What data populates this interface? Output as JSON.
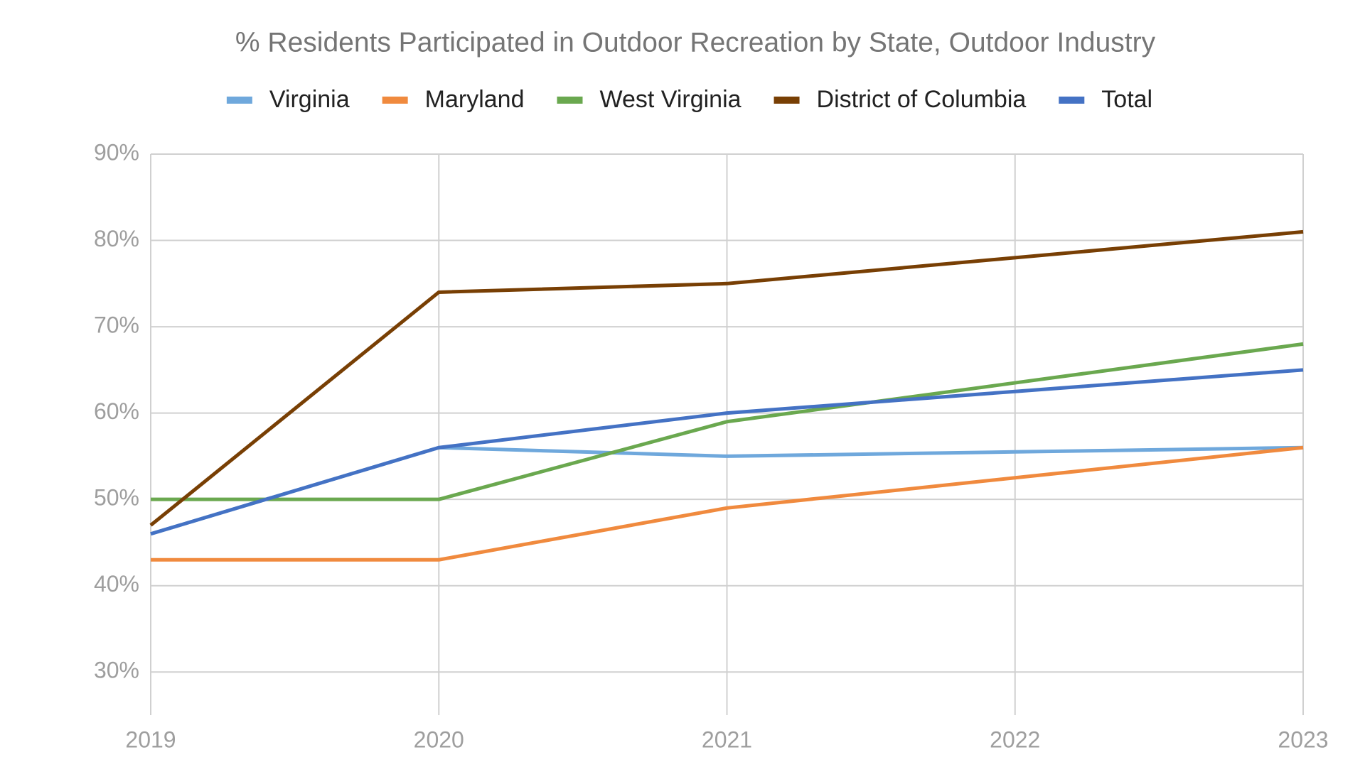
{
  "chart_data": {
    "type": "line",
    "title": "% Residents Participated in Outdoor Recreation by State, Outdoor Industry",
    "x": [
      2019,
      2020,
      2021,
      2022,
      2023
    ],
    "xlim": [
      2019,
      2023
    ],
    "xticks": [
      2019,
      2020,
      2021,
      2022,
      2023
    ],
    "ylim": [
      25,
      90
    ],
    "yticks": [
      {
        "value": 30,
        "label": "30%"
      },
      {
        "value": 40,
        "label": "40%"
      },
      {
        "value": 50,
        "label": "50%"
      },
      {
        "value": 60,
        "label": "60%"
      },
      {
        "value": 70,
        "label": "70%"
      },
      {
        "value": 80,
        "label": "80%"
      },
      {
        "value": 90,
        "label": "90%"
      }
    ],
    "grid": true,
    "legend": "top",
    "series": [
      {
        "name": "Virginia",
        "color": "#6fa8dc",
        "values": [
          46,
          56,
          55,
          55.5,
          56
        ]
      },
      {
        "name": "Maryland",
        "color": "#f08a3e",
        "values": [
          43,
          43,
          49,
          52.5,
          56
        ]
      },
      {
        "name": "West Virginia",
        "color": "#6aa84f",
        "values": [
          50,
          50,
          59,
          63.5,
          68
        ]
      },
      {
        "name": "District of Columbia",
        "color": "#783f04",
        "values": [
          47,
          74,
          75,
          78,
          81
        ]
      },
      {
        "name": "Total",
        "color": "#4472c4",
        "values": [
          46,
          56,
          60,
          62.5,
          65
        ]
      }
    ]
  }
}
